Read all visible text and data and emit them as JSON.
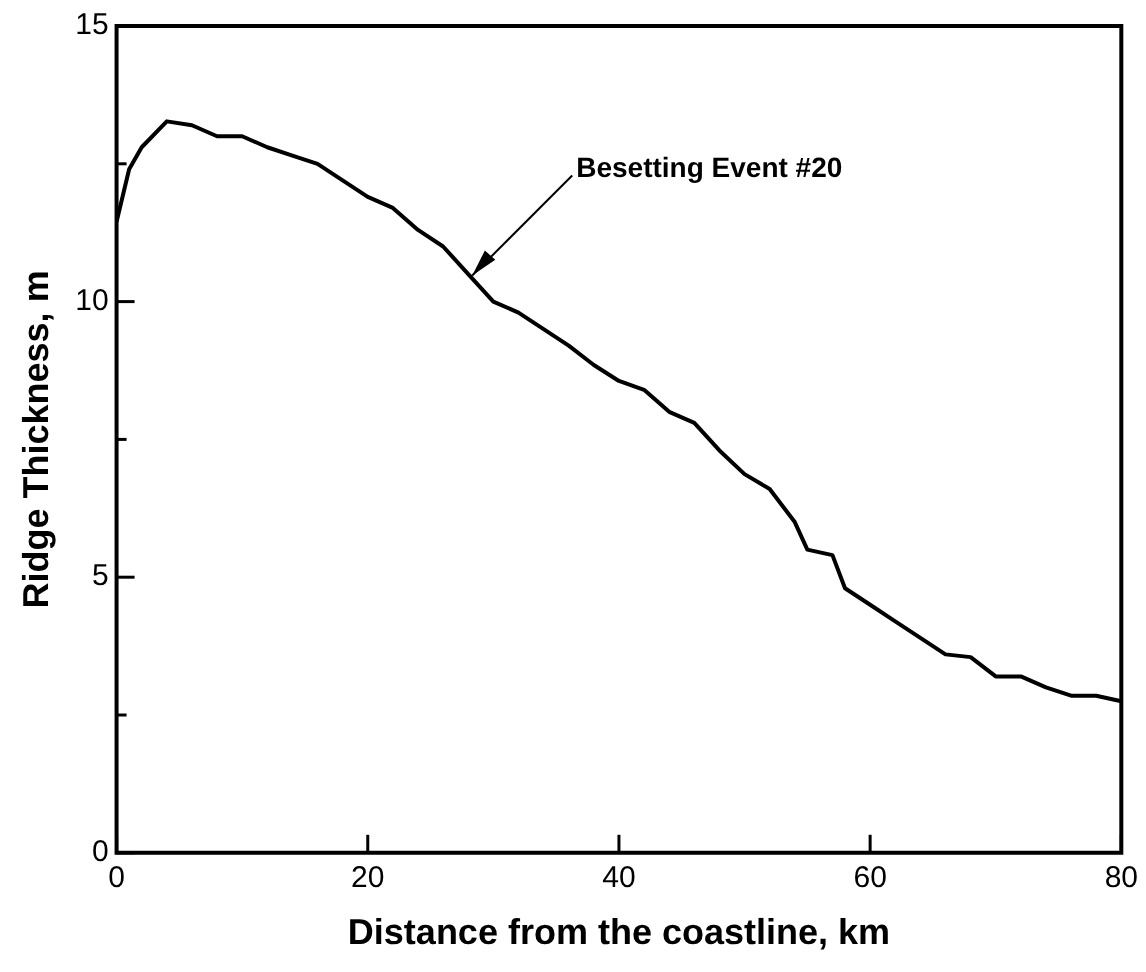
{
  "chart_data": {
    "type": "line",
    "xlabel": "Distance from the coastline, km",
    "ylabel": "Ridge Thickness, m",
    "x": [
      0,
      1,
      2,
      4,
      6,
      8,
      10,
      12,
      14,
      16,
      18,
      20,
      22,
      24,
      26,
      28,
      30,
      32,
      34,
      36,
      38,
      40,
      42,
      44,
      46,
      48,
      50,
      52,
      54,
      55,
      57,
      58,
      60,
      62,
      64,
      66,
      68,
      70,
      72,
      74,
      76,
      78,
      80
    ],
    "series": [
      {
        "color": "#000000",
        "values": [
          11.45,
          12.4,
          12.8,
          13.27,
          13.2,
          13.0,
          13.0,
          12.8,
          12.65,
          12.5,
          12.2,
          11.9,
          11.7,
          11.3,
          11.0,
          10.5,
          10.0,
          9.8,
          9.5,
          9.2,
          8.85,
          8.56,
          8.4,
          8.0,
          7.8,
          7.3,
          6.87,
          6.6,
          6.0,
          5.5,
          5.4,
          4.8,
          4.5,
          4.2,
          3.9,
          3.6,
          3.55,
          3.2,
          3.2,
          3.0,
          2.85,
          2.85,
          2.75
        ]
      }
    ],
    "xlim": [
      0,
      80
    ],
    "xticks": [
      0,
      20,
      40,
      60,
      80
    ],
    "ylim": [
      0,
      15
    ],
    "yticks": [
      0,
      {
        "value": 2.5,
        "label": null
      },
      5,
      {
        "value": 7.5,
        "label": null
      },
      10,
      {
        "value": 12.5,
        "label": null
      },
      15
    ],
    "annotations": [
      {
        "text": "Besetting Event #20",
        "x": 28,
        "y": 10.4
      }
    ],
    "grid": false,
    "legend": false,
    "marker": "none",
    "line_style": "solid"
  }
}
